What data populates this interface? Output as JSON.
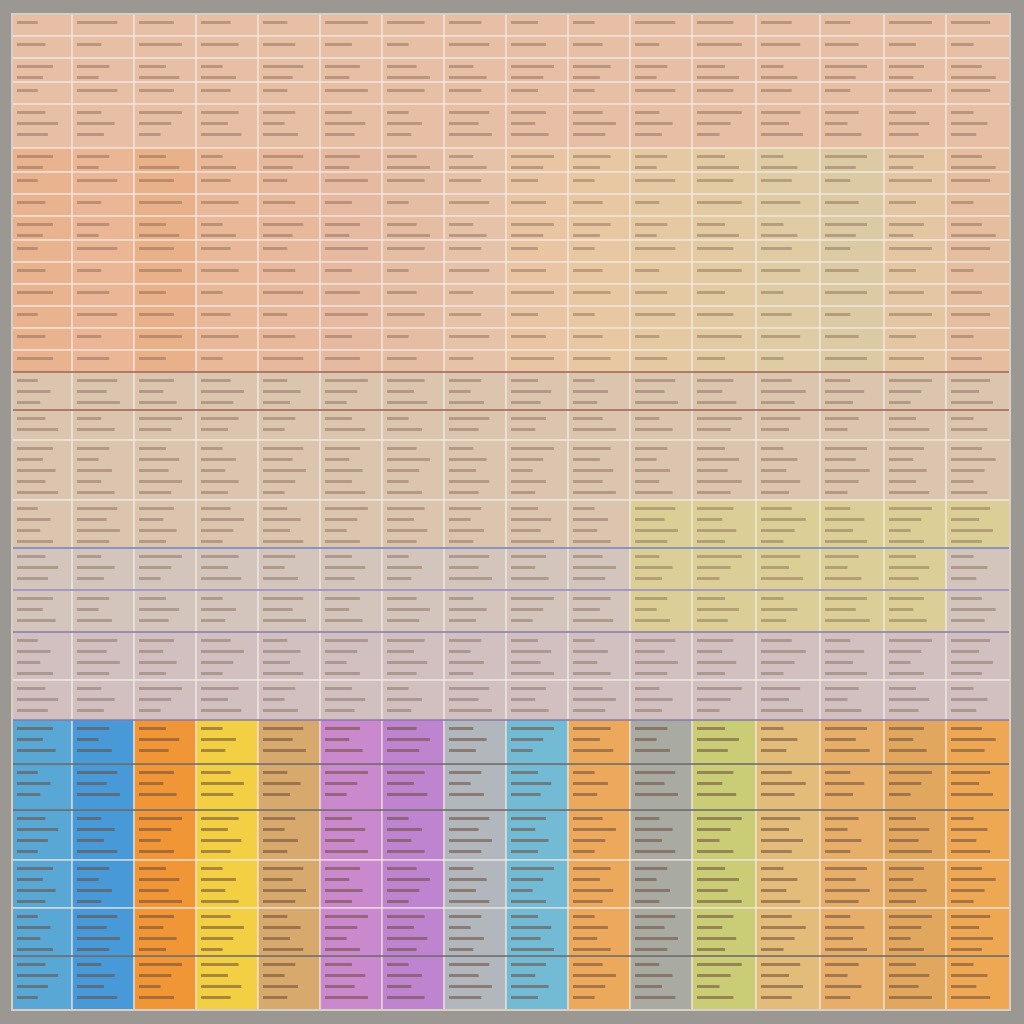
{
  "sheet": {
    "columns": 16,
    "rows": 22,
    "text_legible": false,
    "bands": [
      {
        "name": "top-peach",
        "color": "#eab493"
      },
      {
        "name": "upper-orange",
        "color": "#e79f72"
      },
      {
        "name": "middle-tan",
        "color": "#d7bfa8"
      },
      {
        "name": "lavender",
        "color": "#c4b7c8"
      },
      {
        "name": "bottom-multicolor",
        "color": "#caa88c"
      }
    ],
    "column_tints": [
      "#ee9e6e",
      "#f0a47a",
      "#ee9a62",
      "#eda77f",
      "#eba884",
      "#e9a98e",
      "#e8b191",
      "#e9bb9a",
      "#eebf93",
      "#ecc48f",
      "#e6c692",
      "#e2c990",
      "#dccc95",
      "#d6c992",
      "#e6c192",
      "#e7b28c"
    ],
    "lower_accent_yellow_green": "#d6cf7a",
    "bottom_column_colors": [
      "#3fa0d9",
      "#2c90dc",
      "#f28c1f",
      "#f6cf2e",
      "#d6a25e",
      "#c57ccf",
      "#b777d4",
      "#a9b1bd",
      "#5fb6d9",
      "#eea24a",
      "#9fa59d",
      "#c5cb6a",
      "#e3b86e",
      "#e7a85a",
      "#e2a04e",
      "#f0a041"
    ]
  }
}
